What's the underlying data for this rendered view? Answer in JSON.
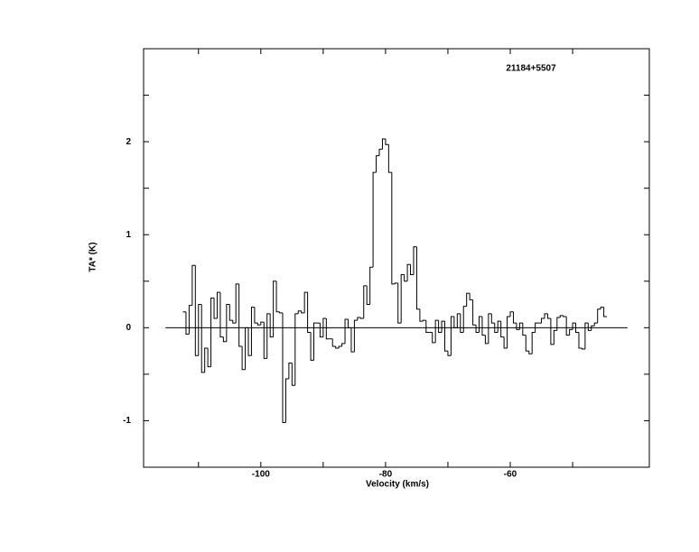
{
  "chart_data": {
    "type": "step",
    "title": "21184+5507",
    "xlabel": "Velocity (km/s)",
    "ylabel": "TA* (K)",
    "xlim": [
      -118.8,
      -37.7
    ],
    "ylim": [
      -1.5,
      3.0
    ],
    "xticks": [
      -100,
      -80,
      -60
    ],
    "xminor": [
      -110,
      -90,
      -70,
      -50
    ],
    "yticks": [
      -1,
      0,
      1,
      2
    ],
    "yminor": [
      -1.5,
      -0.5,
      0.5,
      1.5,
      2.5,
      3.0
    ],
    "baseline": {
      "x": [
        -115.3,
        -41.2
      ],
      "y": 0
    },
    "color": "#000000",
    "x": [
      -112.25,
      -111.75,
      -111.25,
      -110.75,
      -110.25,
      -109.75,
      -109.25,
      -108.75,
      -108.25,
      -107.75,
      -107.25,
      -106.75,
      -106.25,
      -105.75,
      -105.25,
      -104.75,
      -104.25,
      -103.75,
      -103.25,
      -102.75,
      -102.25,
      -101.75,
      -101.25,
      -100.75,
      -100.25,
      -99.75,
      -99.25,
      -98.75,
      -98.25,
      -97.75,
      -97.25,
      -96.75,
      -96.25,
      -95.75,
      -95.25,
      -94.75,
      -94.25,
      -93.75,
      -93.25,
      -92.75,
      -92.25,
      -91.75,
      -91.25,
      -90.75,
      -90.25,
      -89.75,
      -89.25,
      -88.75,
      -88.25,
      -87.75,
      -87.25,
      -86.75,
      -86.25,
      -85.75,
      -85.25,
      -84.75,
      -84.25,
      -83.75,
      -83.25,
      -82.75,
      -82.25,
      -81.75,
      -81.25,
      -80.75,
      -80.25,
      -79.75,
      -79.25,
      -78.75,
      -78.25,
      -77.75,
      -77.25,
      -76.75,
      -76.25,
      -75.75,
      -75.25,
      -74.75,
      -74.25,
      -73.75,
      -73.25,
      -72.75,
      -72.25,
      -71.75,
      -71.25,
      -70.75,
      -70.25,
      -69.75,
      -69.25,
      -68.75,
      -68.25,
      -67.75,
      -67.25,
      -66.75,
      -66.25,
      -65.75,
      -65.25,
      -64.75,
      -64.25,
      -63.75,
      -63.25,
      -62.75,
      -62.25,
      -61.75,
      -61.25,
      -60.75,
      -60.25,
      -59.75,
      -59.25,
      -58.75,
      -58.25,
      -57.75,
      -57.25,
      -56.75,
      -56.25,
      -55.75,
      -55.25,
      -54.75,
      -54.25,
      -53.75,
      -53.25,
      -52.75,
      -52.25,
      -51.75,
      -51.25,
      -50.75,
      -50.25,
      -49.75,
      -49.25,
      -48.75,
      -48.25,
      -47.75,
      -47.25,
      -46.75,
      -46.25,
      -45.75,
      -45.25,
      -44.75
    ],
    "values": [
      0.17,
      -0.07,
      0.24,
      0.67,
      -0.3,
      0.25,
      -0.48,
      -0.22,
      -0.42,
      0.32,
      0.1,
      0.38,
      -0.1,
      -0.15,
      0.25,
      0.08,
      0.05,
      0.47,
      -0.2,
      -0.45,
      0.0,
      -0.3,
      0.22,
      0.05,
      0.03,
      0.06,
      -0.33,
      0.15,
      -0.1,
      0.5,
      0.17,
      0.16,
      -1.02,
      -0.55,
      -0.38,
      -0.62,
      0.15,
      0.18,
      0.16,
      0.38,
      -0.05,
      -0.35,
      0.05,
      0.05,
      -0.1,
      0.1,
      -0.12,
      -0.12,
      -0.2,
      -0.22,
      -0.2,
      -0.17,
      0.09,
      0.0,
      -0.26,
      0.08,
      0.11,
      0.1,
      0.45,
      0.25,
      0.65,
      1.67,
      1.85,
      1.92,
      2.03,
      1.97,
      1.67,
      0.47,
      0.48,
      0.05,
      0.57,
      0.5,
      0.68,
      0.57,
      0.87,
      0.2,
      0.07,
      0.08,
      -0.05,
      -0.05,
      -0.16,
      0.08,
      -0.05,
      0.07,
      -0.25,
      -0.3,
      0.12,
      0.0,
      0.15,
      -0.05,
      0.23,
      0.37,
      0.3,
      0.03,
      -0.05,
      0.12,
      -0.08,
      -0.17,
      0.15,
      0.05,
      -0.05,
      0.07,
      -0.1,
      -0.22,
      0.12,
      0.17,
      0.05,
      -0.02,
      0.05,
      -0.08,
      -0.25,
      -0.28,
      -0.05,
      0.05,
      0.05,
      0.1,
      0.15,
      0.1,
      -0.18,
      -0.03,
      0.11,
      0.13,
      0.12,
      -0.08,
      -0.02,
      0.05,
      -0.05,
      -0.22,
      -0.23,
      0.05,
      -0.03,
      0.02,
      0.05,
      0.2,
      0.22,
      0.12
    ]
  }
}
